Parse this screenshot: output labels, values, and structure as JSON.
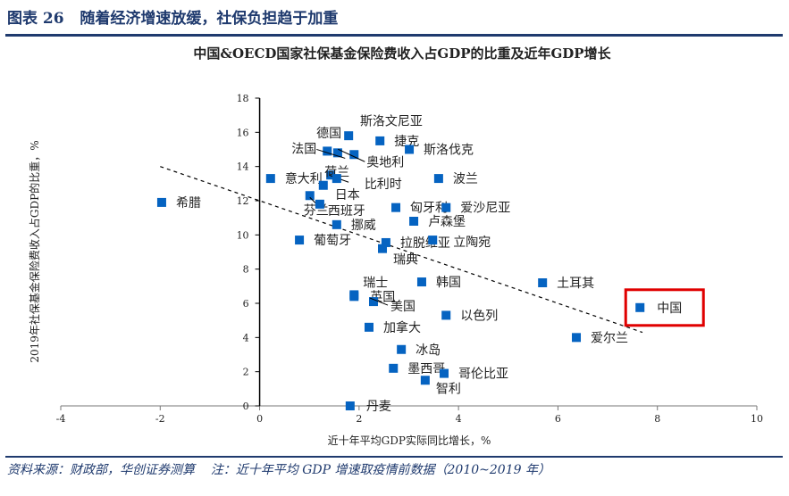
{
  "header": {
    "figure_title": "图表 26   随着经济增速放缓，社保负担趋于加重"
  },
  "footer": {
    "source": "资料来源：财政部，华创证券测算    注：近十年平均 GDP 增速取疫情前数据（2010~2019 年）"
  },
  "chart_data": {
    "type": "scatter",
    "title": "中国&OECD国家社保基金保险费收入占GDP的比重及近年GDP增长",
    "xlabel": "近十年平均GDP实际同比增长，%",
    "ylabel": "2019年社保基金保险费收入占GDP的比重，%",
    "xlim": [
      -4,
      10
    ],
    "ylim": [
      0,
      18
    ],
    "xticks": [
      "-4",
      "-2",
      "0",
      "2",
      "4",
      "6",
      "8",
      "10"
    ],
    "yticks": [
      "0",
      "2",
      "4",
      "6",
      "8",
      "10",
      "12",
      "14",
      "16",
      "18"
    ],
    "grid": false,
    "trendline": {
      "style": "dashed",
      "x": [
        -2,
        7.7
      ],
      "y": [
        14.0,
        4.3
      ]
    },
    "highlight": "中国",
    "highlight_color": "#e00000",
    "marker_color": "#0563c1",
    "points": [
      {
        "name": "希腊",
        "x": -1.97,
        "y": 11.9
      },
      {
        "name": "意大利",
        "x": 0.22,
        "y": 13.3
      },
      {
        "name": "德国",
        "x": 1.79,
        "y": 15.8
      },
      {
        "name": "斯洛文尼亚",
        "x": 1.57,
        "y": 14.8
      },
      {
        "name": "捷克",
        "x": 2.42,
        "y": 15.5
      },
      {
        "name": "斯洛伐克",
        "x": 3.01,
        "y": 15.0
      },
      {
        "name": "法国",
        "x": 1.36,
        "y": 14.9
      },
      {
        "name": "奥地利",
        "x": 1.9,
        "y": 14.7
      },
      {
        "name": "荷兰",
        "x": 1.43,
        "y": 13.5
      },
      {
        "name": "比利时",
        "x": 1.55,
        "y": 13.3
      },
      {
        "name": "日本",
        "x": 1.28,
        "y": 12.9
      },
      {
        "name": "芬兰",
        "x": 1.01,
        "y": 12.3
      },
      {
        "name": "西班牙",
        "x": 1.21,
        "y": 11.8
      },
      {
        "name": "匈牙利",
        "x": 2.74,
        "y": 11.6
      },
      {
        "name": "爱沙尼亚",
        "x": 3.75,
        "y": 11.6
      },
      {
        "name": "波兰",
        "x": 3.6,
        "y": 13.3
      },
      {
        "name": "挪威",
        "x": 1.55,
        "y": 10.6
      },
      {
        "name": "卢森堡",
        "x": 3.1,
        "y": 10.8
      },
      {
        "name": "葡萄牙",
        "x": 0.8,
        "y": 9.7
      },
      {
        "name": "拉脱维亚",
        "x": 2.54,
        "y": 9.55
      },
      {
        "name": "瑞典",
        "x": 2.47,
        "y": 9.2
      },
      {
        "name": "立陶宛",
        "x": 3.48,
        "y": 9.7
      },
      {
        "name": "瑞士",
        "x": 1.9,
        "y": 6.5
      },
      {
        "name": "英国",
        "x": 1.9,
        "y": 6.4
      },
      {
        "name": "美国",
        "x": 2.29,
        "y": 6.1
      },
      {
        "name": "韩国",
        "x": 3.26,
        "y": 7.25
      },
      {
        "name": "以色列",
        "x": 3.75,
        "y": 5.3
      },
      {
        "name": "加拿大",
        "x": 2.2,
        "y": 4.6
      },
      {
        "name": "冰岛",
        "x": 2.85,
        "y": 3.3
      },
      {
        "name": "墨西哥",
        "x": 2.69,
        "y": 2.2
      },
      {
        "name": "哥伦比亚",
        "x": 3.71,
        "y": 1.9
      },
      {
        "name": "智利",
        "x": 3.33,
        "y": 1.5
      },
      {
        "name": "丹麦",
        "x": 1.82,
        "y": 0.0
      },
      {
        "name": "土耳其",
        "x": 5.69,
        "y": 7.2
      },
      {
        "name": "爱尔兰",
        "x": 6.37,
        "y": 4.0
      },
      {
        "name": "中国",
        "x": 7.65,
        "y": 5.75
      }
    ]
  }
}
